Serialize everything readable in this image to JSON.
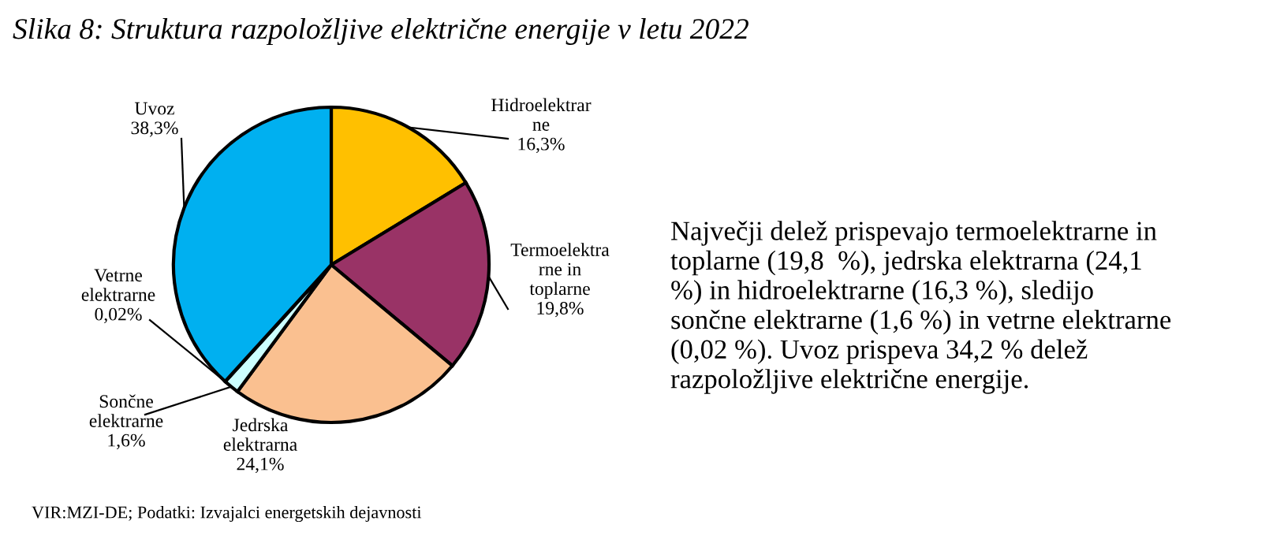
{
  "chart_data": {
    "type": "pie",
    "title": "Slika 8: Struktura razpoložljive električne energije v letu 2022",
    "categories": [
      "Hidroelektrar\nne",
      "Termoelektra\nrne in\ntoplarne",
      "Jedrska\nelektrarna",
      "Sončne\nelektrarne",
      "Vetrne\nelektrarne",
      "Uvoz"
    ],
    "values": [
      16.3,
      19.8,
      24.1,
      1.6,
      0.02,
      38.3
    ],
    "value_labels": [
      "16,3%",
      "19,8%",
      "24,1%",
      "1,6%",
      "0,02%",
      "38,3%"
    ],
    "colors": [
      "#ffc000",
      "#993366",
      "#fac090",
      "#ccffff",
      "#ffffff",
      "#00b0f0"
    ],
    "annotations": [
      "VIR:MZI-DE; Podatki: Izvajalci energetskih dejavnosti",
      "Največji delež prispevajo termoelektrarne in\ntoplarne (19,8  %), jedrska elektrarna (24,1\n%) in hidroelektrarne (16,3 %), sledijo\nsončne elektrarne (1,6 %) in vetrne elektrarne\n(0,02 %). Uvoz prispeva 34,2 % delež\nrazpoložljive električne energije."
    ]
  }
}
